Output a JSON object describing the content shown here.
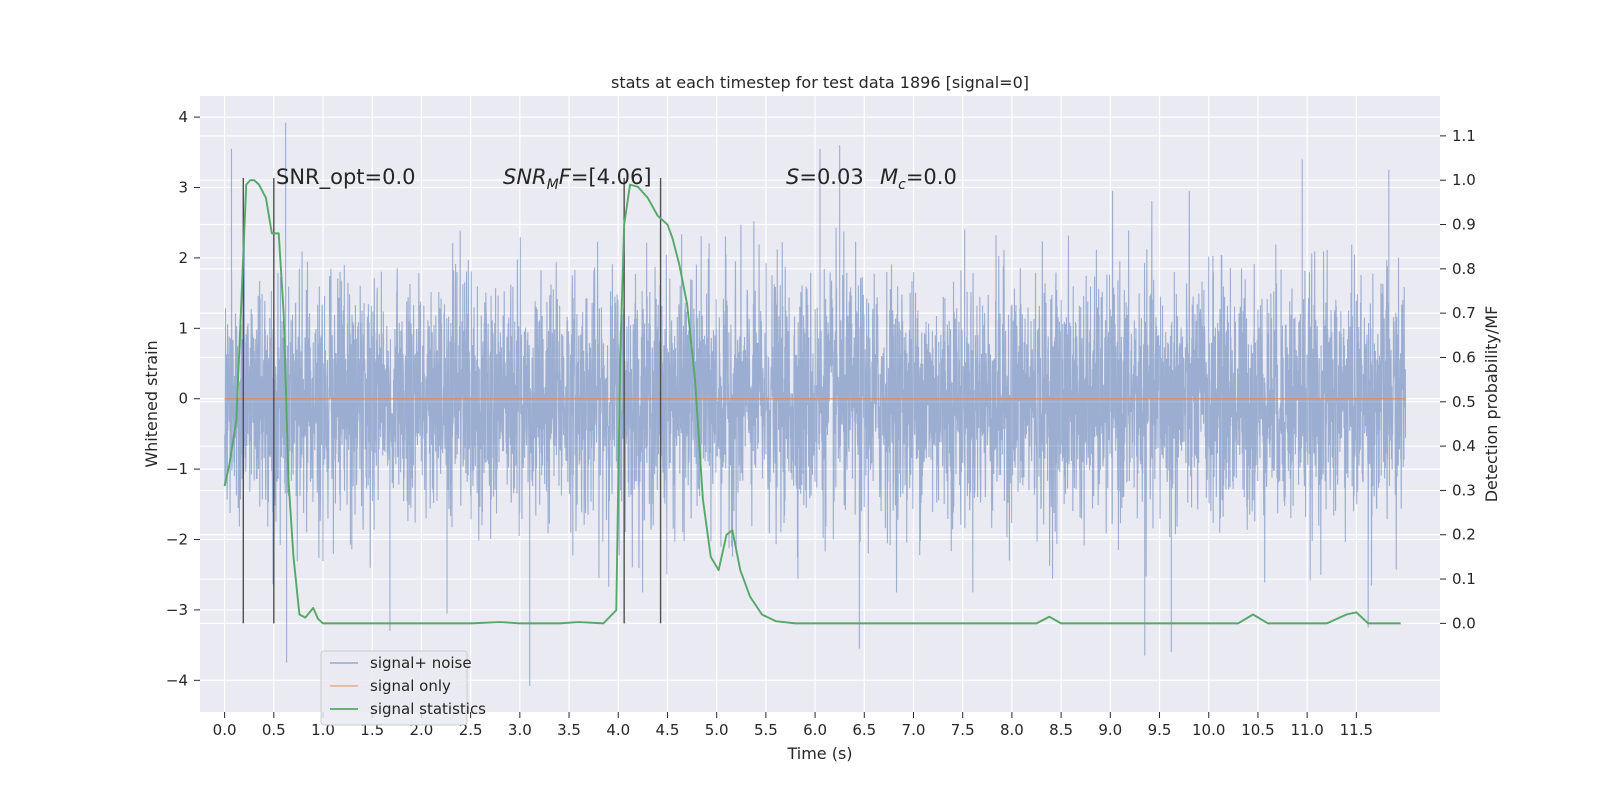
{
  "chart_data": {
    "type": "line",
    "title": "stats at each timestep for test data 1896 [signal=0]",
    "xlabel": "Time (s)",
    "ylabel_left": "Whitened strain",
    "ylabel_right": "Detection probability/MF",
    "xlim": [
      -0.25,
      12.35
    ],
    "ylim_left": [
      -4.45,
      4.3
    ],
    "ylim_right": [
      -0.2,
      1.19
    ],
    "x_ticks": [
      0.0,
      0.5,
      1.0,
      1.5,
      2.0,
      2.5,
      3.0,
      3.5,
      4.0,
      4.5,
      5.0,
      5.5,
      6.0,
      6.5,
      7.0,
      7.5,
      8.0,
      8.5,
      9.0,
      9.5,
      10.0,
      10.5,
      11.0,
      11.5
    ],
    "x_tick_labels": [
      "0.0",
      "0.5",
      "1.0",
      "1.5",
      "2.0",
      "2.5",
      "3.0",
      "3.5",
      "4.0",
      "4.5",
      "5.0",
      "5.5",
      "6.0",
      "6.5",
      "7.0",
      "7.5",
      "8.0",
      "8.5",
      "9.0",
      "9.5",
      "10.0",
      "10.5",
      "11.0",
      "11.5"
    ],
    "y_left_ticks": [
      4,
      3,
      2,
      1,
      0,
      -1,
      -2,
      -3,
      -4
    ],
    "y_left_tick_labels": [
      "4",
      "3",
      "2",
      "1",
      "0",
      "−1",
      "−2",
      "−3",
      "−4"
    ],
    "y_right_ticks": [
      1.1,
      1.0,
      0.9,
      0.8,
      0.7,
      0.6,
      0.5,
      0.4,
      0.3,
      0.2,
      0.1,
      0.0
    ],
    "y_right_tick_labels": [
      "1.1",
      "1.0",
      "0.9",
      "0.8",
      "0.7",
      "0.6",
      "0.5",
      "0.4",
      "0.3",
      "0.2",
      "0.1",
      "0.0"
    ],
    "grid": true,
    "legend_position": "lower-left",
    "series": [
      {
        "name": "signal+ noise",
        "axis": "left",
        "color": "#4c72b0",
        "description_range": [
          0.0,
          12.0
        ],
        "envelope": {
          "typical_min": -2.2,
          "typical_max": 2.4,
          "peak_max": 3.92,
          "peak_min": -4.08
        },
        "spikes": [
          {
            "x": 0.07,
            "y": 3.55
          },
          {
            "x": 0.62,
            "y": 3.92
          },
          {
            "x": 0.63,
            "y": -3.75
          },
          {
            "x": 1.68,
            "y": -3.3
          },
          {
            "x": 2.26,
            "y": -3.05
          },
          {
            "x": 3.1,
            "y": -4.08
          },
          {
            "x": 6.05,
            "y": 3.55
          },
          {
            "x": 6.25,
            "y": 3.6
          },
          {
            "x": 6.45,
            "y": -3.55
          },
          {
            "x": 9.35,
            "y": -3.65
          },
          {
            "x": 9.62,
            "y": -3.6
          },
          {
            "x": 10.95,
            "y": 3.4
          },
          {
            "x": 11.83,
            "y": 3.25
          },
          {
            "x": 11.62,
            "y": -3.25
          }
        ]
      },
      {
        "name": "signal only",
        "axis": "left",
        "color": "#dd8452",
        "x": [
          0.0,
          12.0
        ],
        "y": [
          0.0,
          0.0
        ]
      },
      {
        "name": "signal statistics",
        "axis": "right",
        "color": "#55a868",
        "x": [
          0.0,
          0.05,
          0.12,
          0.18,
          0.22,
          0.26,
          0.3,
          0.35,
          0.42,
          0.48,
          0.55,
          0.6,
          0.65,
          0.7,
          0.76,
          0.82,
          0.9,
          0.95,
          1.0,
          1.1,
          1.5,
          2.0,
          2.5,
          2.8,
          3.0,
          3.4,
          3.6,
          3.85,
          3.98,
          4.02,
          4.06,
          4.12,
          4.2,
          4.3,
          4.4,
          4.5,
          4.55,
          4.62,
          4.7,
          4.78,
          4.86,
          4.94,
          5.02,
          5.1,
          5.16,
          5.24,
          5.34,
          5.46,
          5.6,
          5.8,
          6.2,
          7.0,
          8.0,
          8.25,
          8.38,
          8.5,
          8.7,
          9.0,
          9.5,
          10.0,
          10.2,
          10.3,
          10.45,
          10.6,
          10.8,
          11.2,
          11.4,
          11.5,
          11.62,
          11.8,
          11.95
        ],
        "y": [
          0.31,
          0.36,
          0.46,
          0.78,
          0.99,
          1.0,
          1.0,
          0.99,
          0.96,
          0.88,
          0.88,
          0.7,
          0.32,
          0.15,
          0.02,
          0.013,
          0.035,
          0.01,
          0.0,
          0.0,
          0.0,
          0.0,
          0.0,
          0.003,
          0.0,
          0.0,
          0.003,
          0.0,
          0.03,
          0.6,
          0.9,
          0.99,
          0.985,
          0.96,
          0.92,
          0.9,
          0.87,
          0.81,
          0.72,
          0.55,
          0.28,
          0.15,
          0.12,
          0.2,
          0.21,
          0.12,
          0.06,
          0.02,
          0.005,
          0.0,
          0.0,
          0.0,
          0.0,
          0.0,
          0.015,
          0.0,
          0.0,
          0.0,
          0.0,
          0.0,
          0.0,
          0.0,
          0.02,
          0.0,
          0.0,
          0.0,
          0.02,
          0.025,
          0.0,
          0.0,
          0.0
        ]
      }
    ],
    "vertical_lines": [
      0.19,
      0.5,
      4.06,
      4.43
    ],
    "vertical_line_color": "#505050",
    "annotations": [
      {
        "text": "SNR_opt=0.0",
        "x": 0.21,
        "y_right": 1.0
      },
      {
        "text": "SNR_MF=[4.06]",
        "x": 2.6,
        "y_right": 1.0
      },
      {
        "text": "S=0.03   M_c=0.0",
        "x": 5.6,
        "y_right": 1.0
      }
    ],
    "colors": {
      "plot_bg": "#eaeaf2",
      "grid": "#ffffff",
      "noise": "#4c72b0",
      "signal": "#dd8452",
      "stats": "#55a868"
    }
  },
  "legend": {
    "items": [
      "signal+ noise",
      "signal only",
      "signal statistics"
    ]
  },
  "annotations_text": {
    "snr_opt": "SNR_opt=0.0",
    "snr_mf_base": "SNR",
    "snr_mf_sub": "M",
    "snr_mf_italic": "F",
    "snr_mf_value": "=[4.06]",
    "s_label": "S",
    "s_value": "=0.03",
    "mc_label": "M",
    "mc_sub": "c",
    "mc_value": "=0.0"
  }
}
